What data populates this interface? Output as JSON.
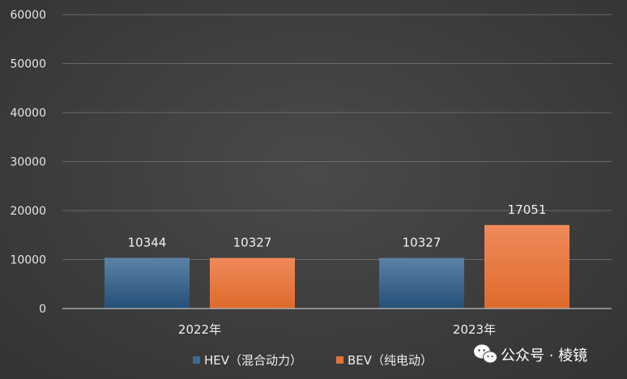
{
  "chart_data": {
    "type": "bar",
    "categories": [
      "2022年",
      "2023年"
    ],
    "series": [
      {
        "name": "HEV（混合动力）",
        "values": [
          10344,
          10327
        ],
        "color": "#3d6a92"
      },
      {
        "name": "BEV（纯电动）",
        "values": [
          10327,
          17051
        ],
        "color": "#e4733a"
      }
    ],
    "ylim": [
      0,
      60000
    ],
    "yticks": [
      "0",
      "10000",
      "20000",
      "30000",
      "40000",
      "50000",
      "60000"
    ],
    "grid": true,
    "legend": "bottom"
  },
  "watermark": {
    "text": "公众号 · 棱镜",
    "icon": "wechat-icon"
  }
}
